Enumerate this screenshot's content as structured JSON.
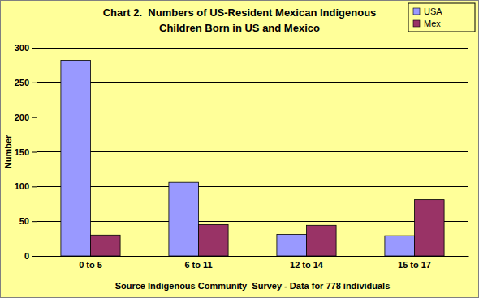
{
  "chart_data": {
    "type": "bar",
    "title": [
      "Chart 2.  Numbers of US-Resident Mexican Indigenous",
      "Children Born in US and Mexico"
    ],
    "x_label": "Source Indigenous Community  Survey - Data for 778 individuals",
    "y_label": "Number",
    "categories": [
      "0 to 5",
      "6 to 11",
      "12 to 14",
      "15 to 17"
    ],
    "series": [
      {
        "name": "USA",
        "color": "#9999ff",
        "values": [
          282,
          106,
          31,
          29
        ]
      },
      {
        "name": "Mex",
        "color": "#993366",
        "values": [
          30,
          45,
          44,
          81
        ]
      }
    ],
    "ylim": [
      0,
      300
    ],
    "yticks": [
      0,
      50,
      100,
      150,
      200,
      250,
      300
    ],
    "grid": true,
    "legend": "top-right"
  }
}
